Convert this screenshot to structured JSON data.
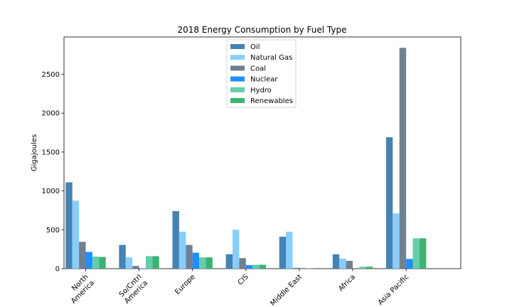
{
  "chart_data": {
    "type": "bar",
    "title": "2018 Energy Consumption by Fuel Type",
    "xlabel": "",
    "ylabel": "Gigajoules",
    "categories": [
      [
        "North",
        "America"
      ],
      [
        "So/Cntrl",
        "America"
      ],
      [
        "Europe"
      ],
      [
        "CIS"
      ],
      [
        "Middle East"
      ],
      [
        "Africa"
      ],
      [
        "Asia Pacific"
      ]
    ],
    "ylim": [
      0,
      2980
    ],
    "yticks": [
      0,
      500,
      1000,
      1500,
      2000,
      2500
    ],
    "legend_position": "top-center",
    "series": [
      {
        "name": "Oil",
        "color": "#4682b4",
        "values": [
          1110,
          305,
          740,
          185,
          410,
          185,
          1690
        ]
      },
      {
        "name": "Natural Gas",
        "color": "#87cefa",
        "values": [
          875,
          145,
          475,
          500,
          475,
          130,
          710
        ]
      },
      {
        "name": "Coal",
        "color": "#708090",
        "values": [
          345,
          35,
          305,
          135,
          10,
          100,
          2840
        ]
      },
      {
        "name": "Nuclear",
        "color": "#1e90ff",
        "values": [
          215,
          5,
          205,
          45,
          0,
          0,
          125
        ]
      },
      {
        "name": "Hydro",
        "color": "#66cdaa",
        "values": [
          155,
          160,
          145,
          50,
          5,
          25,
          390
        ]
      },
      {
        "name": "Renewables",
        "color": "#3cb371",
        "values": [
          150,
          160,
          145,
          50,
          0,
          25,
          390
        ]
      }
    ]
  }
}
